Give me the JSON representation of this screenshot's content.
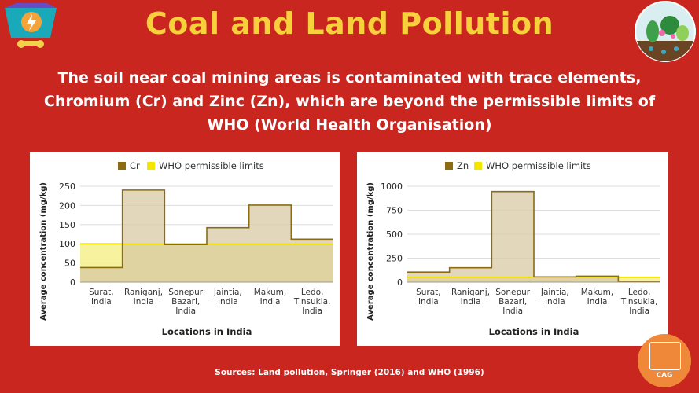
{
  "header": {
    "title": "Coal and Land Pollution",
    "subtitle": "The soil near coal mining areas is contaminated with trace elements, Chromium (Cr) and Zinc (Zn), which are beyond the permissible limits of WHO (World Health Organisation)"
  },
  "footer": {
    "source": "Sources: Land pollution, Springer (2016) and WHO (1996)",
    "badge": "CAG"
  },
  "colors": {
    "background": "#c8261f",
    "title": "#f7d03c",
    "series_line": "#8b6c12",
    "series_fill": "#d8c8a4",
    "who_fill": "#f5f08c",
    "who_line": "#f5e600"
  },
  "chart_data": [
    {
      "type": "area",
      "step": true,
      "categories": [
        [
          "Surat,",
          "India"
        ],
        [
          "Raniganj,",
          "India"
        ],
        [
          "Sonepur",
          "Bazari,",
          "India"
        ],
        [
          "Jaintia,",
          "India"
        ],
        [
          "Makum,",
          "India"
        ],
        [
          "Ledo,",
          "Tinsukia,",
          "India"
        ]
      ],
      "series": [
        {
          "name": "Cr",
          "values": [
            38,
            240,
            98,
            142,
            201,
            112
          ]
        },
        {
          "name": "WHO permissible limits",
          "values": [
            100,
            100,
            100,
            100,
            100,
            100
          ]
        }
      ],
      "xlabel": "Locations in India",
      "ylabel": "Average concentration (mg/kg)",
      "ylim": [
        0,
        250
      ],
      "yticks": [
        0,
        50,
        100,
        150,
        200,
        250
      ],
      "grid": true,
      "legend": "top"
    },
    {
      "type": "area",
      "step": true,
      "categories": [
        [
          "Surat,",
          "India"
        ],
        [
          "Raniganj,",
          "India"
        ],
        [
          "Sonepur",
          "Bazari,",
          "India"
        ],
        [
          "Jaintia,",
          "India"
        ],
        [
          "Makum,",
          "India"
        ],
        [
          "Ledo,",
          "Tinsukia,",
          "India"
        ]
      ],
      "series": [
        {
          "name": "Zn",
          "values": [
            105,
            150,
            945,
            55,
            62,
            8
          ]
        },
        {
          "name": "WHO permissible limits",
          "values": [
            50,
            50,
            50,
            50,
            50,
            50
          ]
        }
      ],
      "xlabel": "Locations in India",
      "ylabel": "Average concentration (mg/kg)",
      "ylim": [
        0,
        1000
      ],
      "yticks": [
        0,
        250,
        500,
        750,
        1000
      ],
      "grid": true,
      "legend": "top"
    }
  ]
}
